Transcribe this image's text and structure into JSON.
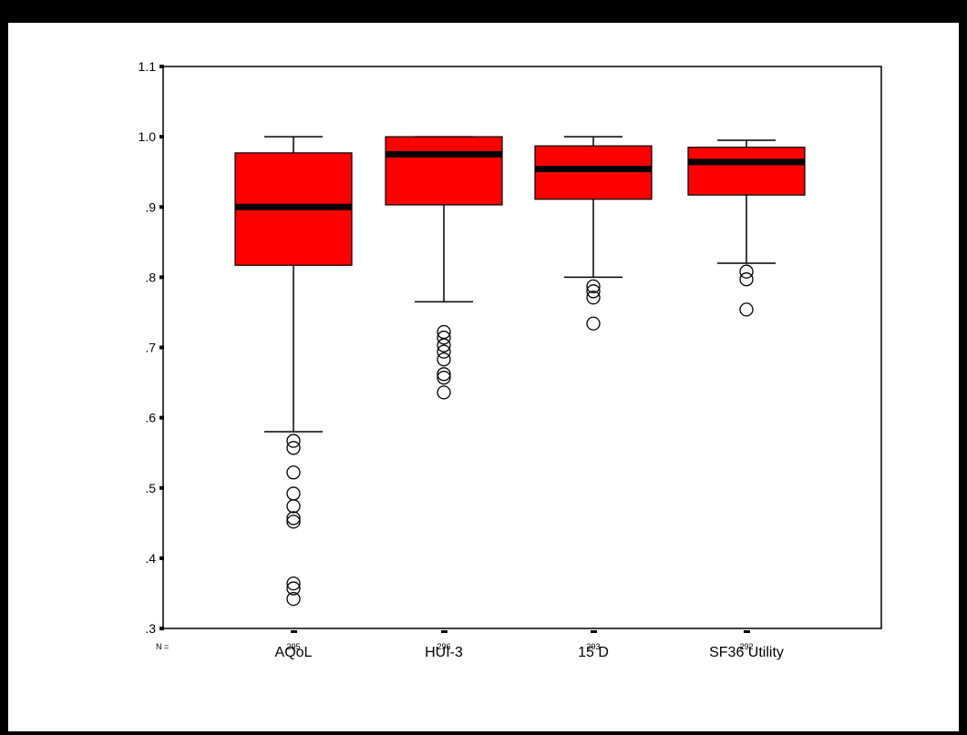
{
  "chart_data": {
    "type": "boxplot",
    "ylim": [
      0.3,
      1.1
    ],
    "y_ticks": [
      {
        "value": 1.1,
        "label": "1.1"
      },
      {
        "value": 1.0,
        "label": "1.0"
      },
      {
        "value": 0.9,
        "label": ".9"
      },
      {
        "value": 0.8,
        "label": ".8"
      },
      {
        "value": 0.7,
        "label": ".7"
      },
      {
        "value": 0.6,
        "label": ".6"
      },
      {
        "value": 0.5,
        "label": ".5"
      },
      {
        "value": 0.4,
        "label": ".4"
      },
      {
        "value": 0.3,
        "label": ".3"
      }
    ],
    "n_prefix": "N =",
    "box_color": "#ff0000",
    "categories": [
      "AQoL",
      "HUI-3",
      "15 D",
      "SF36 Utility"
    ],
    "boxes": [
      {
        "name": "AQoL",
        "n": "295",
        "whisker_low": 0.58,
        "q1": 0.817,
        "median": 0.9,
        "q3": 0.977,
        "whisker_high": 1.0,
        "outliers": [
          0.567,
          0.557,
          0.522,
          0.492,
          0.474,
          0.457,
          0.452,
          0.364,
          0.357,
          0.342
        ]
      },
      {
        "name": "HUI-3",
        "n": "296",
        "whisker_low": 0.765,
        "q1": 0.903,
        "median": 0.975,
        "q3": 1.0,
        "whisker_high": 1.0,
        "outliers": [
          0.722,
          0.714,
          0.703,
          0.694,
          0.683,
          0.662,
          0.657,
          0.636
        ]
      },
      {
        "name": "15 D",
        "n": "293",
        "whisker_low": 0.8,
        "q1": 0.911,
        "median": 0.954,
        "q3": 0.987,
        "whisker_high": 1.0,
        "outliers": [
          0.787,
          0.78,
          0.771,
          0.734
        ]
      },
      {
        "name": "SF36 Utility",
        "n": "292",
        "whisker_low": 0.82,
        "q1": 0.917,
        "median": 0.964,
        "q3": 0.985,
        "whisker_high": 0.995,
        "outliers": [
          0.808,
          0.797,
          0.754
        ]
      }
    ]
  }
}
